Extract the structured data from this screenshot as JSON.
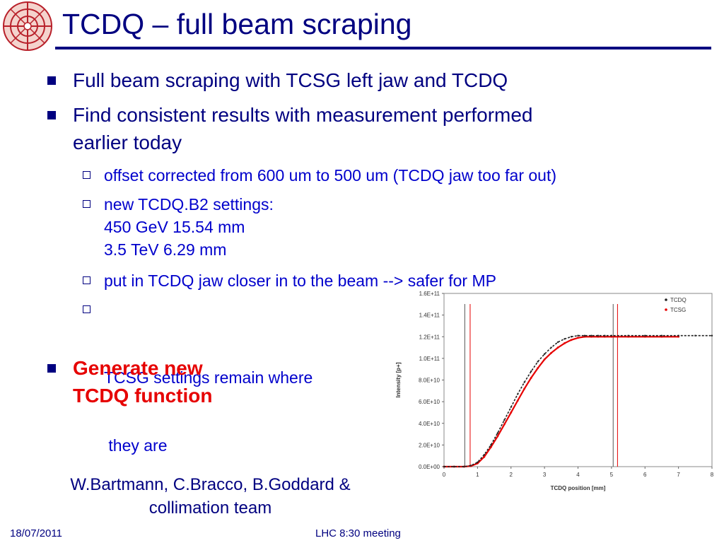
{
  "slide": {
    "title": "TCDQ – full beam scraping",
    "bullets": [
      {
        "text": "Full beam scraping with TCSG left jaw and TCDQ"
      },
      {
        "lines": [
          "Find consistent results with measurement performed",
          "earlier today"
        ]
      }
    ],
    "subbullets": [
      {
        "lines": [
          "offset corrected from 600 um to 500 um (TCDQ jaw too far out)"
        ]
      },
      {
        "lines": [
          "new TCDQ.B2 settings:",
          "450 GeV 15.54 mm",
          "3.5 TeV 6.29 mm"
        ]
      },
      {
        "lines": [
          "put in TCDQ jaw closer in to the beam --> safer for MP"
        ]
      },
      {
        "lines": [
          "TCSG settings remain where",
          " they are"
        ]
      }
    ],
    "highlight_bullet": {
      "lines": [
        "Generate new",
        "TCDQ function"
      ],
      "color": "#e60000"
    },
    "authors": [
      "W.Bartmann, C.Bracco, B.Goddard &",
      "collimation team"
    ],
    "footer": {
      "date": "18/07/2011",
      "meeting": "LHC 8:30 meeting"
    },
    "colors": {
      "text": "#000080",
      "subtext": "#0000cc",
      "highlight": "#e60000"
    },
    "icons": [
      "cern-lhc-logo-icon",
      "square-bullet-icon",
      "hollow-square-bullet-icon"
    ]
  },
  "chart_data": {
    "type": "scatter",
    "xlabel": "TCDQ position [mm]",
    "ylabel": "Intensity [p+]",
    "xlim": [
      0,
      8
    ],
    "ylim": [
      0,
      160000000000.0
    ],
    "xticks": [
      0,
      1,
      2,
      3,
      4,
      5,
      6,
      7,
      8
    ],
    "yticks": [
      0,
      20000000000.0,
      40000000000.0,
      60000000000.0,
      80000000000.0,
      100000000000.0,
      120000000000.0,
      140000000000.0,
      160000000000.0
    ],
    "ytick_labels": [
      "0.0E+00",
      "2.0E+10",
      "4.0E+10",
      "6.0E+10",
      "8.0E+10",
      "1.0E+11",
      "1.2E+11",
      "1.4E+11",
      "1.6E+11"
    ],
    "grid": false,
    "legend_position": "top-right",
    "series": [
      {
        "name": "TCDQ",
        "color": "#222222",
        "x": [
          0,
          0.3,
          0.6,
          0.8,
          1.0,
          1.2,
          1.4,
          1.6,
          1.8,
          2.0,
          2.2,
          2.4,
          2.6,
          2.8,
          3.0,
          3.2,
          3.4,
          3.6,
          3.8,
          4.0,
          4.2,
          4.4,
          4.6,
          4.8,
          5.0,
          5.5,
          6.0,
          6.5,
          7.0,
          7.5,
          8.0
        ],
        "y": [
          0,
          0,
          0,
          1000000000.0,
          4000000000.0,
          11000000000.0,
          20000000000.0,
          31000000000.0,
          43000000000.0,
          55000000000.0,
          67000000000.0,
          78000000000.0,
          88000000000.0,
          97000000000.0,
          104000000000.0,
          110000000000.0,
          115000000000.0,
          118000000000.0,
          120000000000.0,
          121000000000.0,
          121000000000.0,
          121000000000.0,
          121000000000.0,
          121000000000.0,
          121000000000.0,
          121000000000.0,
          121000000000.0,
          121000000000.0,
          121000000000.0,
          121000000000.0,
          121000000000.0
        ]
      },
      {
        "name": "TCSG",
        "color": "#e60000",
        "x": [
          0,
          0.3,
          0.6,
          0.8,
          1.0,
          1.2,
          1.4,
          1.6,
          1.8,
          2.0,
          2.2,
          2.4,
          2.6,
          2.8,
          3.0,
          3.2,
          3.4,
          3.6,
          3.8,
          4.0,
          4.2,
          4.4,
          4.6,
          4.8,
          5.0,
          5.5,
          6.0,
          6.5,
          7.0
        ],
        "y": [
          0,
          0,
          0,
          500000000.0,
          3000000000.0,
          9000000000.0,
          18000000000.0,
          28000000000.0,
          39000000000.0,
          50000000000.0,
          61000000000.0,
          72000000000.0,
          82000000000.0,
          91000000000.0,
          99000000000.0,
          105000000000.0,
          110000000000.0,
          114000000000.0,
          117000000000.0,
          119000000000.0,
          120000000000.0,
          120000000000.0,
          120000000000.0,
          120000000000.0,
          120000000000.0,
          120000000000.0,
          120000000000.0,
          120000000000.0,
          120000000000.0
        ]
      }
    ],
    "vertical_lines": [
      {
        "x": 0.62,
        "color": "#555555"
      },
      {
        "x": 0.78,
        "color": "#e60000"
      },
      {
        "x": 5.05,
        "color": "#555555"
      },
      {
        "x": 5.18,
        "color": "#e60000"
      }
    ]
  }
}
